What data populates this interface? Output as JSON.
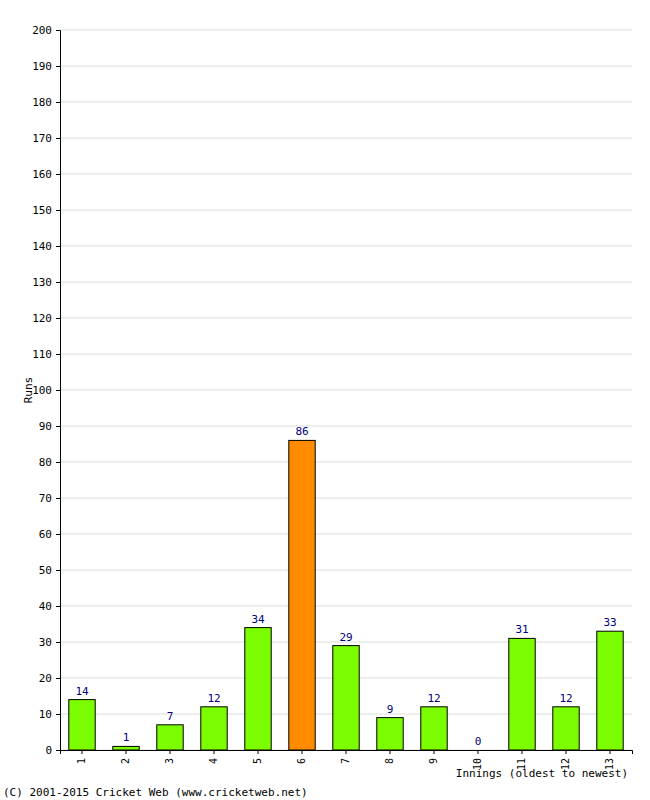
{
  "chart_data": {
    "type": "bar",
    "categories": [
      "1",
      "2",
      "3",
      "4",
      "5",
      "6",
      "7",
      "8",
      "9",
      "10",
      "11",
      "12",
      "13"
    ],
    "values": [
      14,
      1,
      7,
      12,
      34,
      86,
      29,
      9,
      12,
      0,
      31,
      12,
      33
    ],
    "colors": [
      "#7cfc00",
      "#7cfc00",
      "#7cfc00",
      "#7cfc00",
      "#7cfc00",
      "#ff8c00",
      "#7cfc00",
      "#7cfc00",
      "#7cfc00",
      "#7cfc00",
      "#7cfc00",
      "#7cfc00",
      "#7cfc00"
    ],
    "x_label": "Innings (oldest to newest)",
    "y_label": "Runs",
    "ylim": [
      0,
      200
    ],
    "yticks": [
      0,
      10,
      20,
      30,
      40,
      50,
      60,
      70,
      80,
      90,
      100,
      110,
      120,
      130,
      140,
      150,
      160,
      170,
      180,
      190,
      200
    ],
    "grid": true,
    "data_labels": true,
    "annotations": [
      "(C) 2001-2015 Cricket Web (www.cricketweb.net)"
    ]
  }
}
